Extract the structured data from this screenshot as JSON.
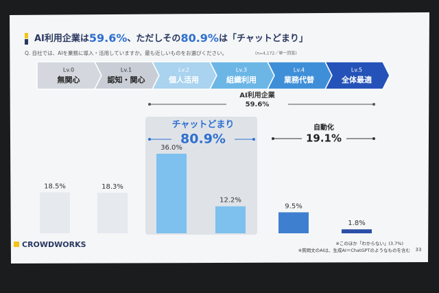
{
  "chart_data": {
    "type": "bar",
    "title_parts": [
      "AI利用企業は",
      "59.6%",
      "、ただしその",
      "80.9%",
      "は",
      "「チャットどまり」"
    ],
    "question": "Q. 自社では、AIを業務に導入・活用していますか。最も近しいものをお選びください。",
    "sample_note": "(n=4,172／単一回答)",
    "categories": [
      "Lv.0",
      "Lv.1",
      "Lv.2",
      "Lv.3",
      "Lv.4",
      "Lv.5"
    ],
    "category_names": [
      "無関心",
      "認知・関心",
      "個人活用",
      "組織利用",
      "業務代替",
      "全体最適"
    ],
    "stage_colors": [
      "#d4d8de",
      "#c9ced6",
      "#a9d3ef",
      "#6cb6e6",
      "#3f8fd8",
      "#2452b8"
    ],
    "values": [
      18.5,
      18.3,
      36.0,
      12.2,
      9.5,
      1.8
    ],
    "value_labels": [
      "18.5%",
      "18.3%",
      "36.0%",
      "12.2%",
      "9.5%",
      "1.8%"
    ],
    "colors": [
      "#e6e9ee",
      "#e6e9ee",
      "#7ec0ee",
      "#7ec0ee",
      "#3f7fcf",
      "#2a4fa8"
    ],
    "annotations": [
      {
        "label": "AI利用企業",
        "value": "59.6%"
      },
      {
        "label": "チャットどまり",
        "value": "80.9%"
      },
      {
        "label": "自動化",
        "value": "19.1%"
      }
    ],
    "footnotes": [
      "※このほか「わからない」(3.7%)",
      "※質問文のAIは、生成AI＝ChatGPTのようなものを含む"
    ],
    "brand": "CROWDWORKS",
    "page": "33"
  }
}
